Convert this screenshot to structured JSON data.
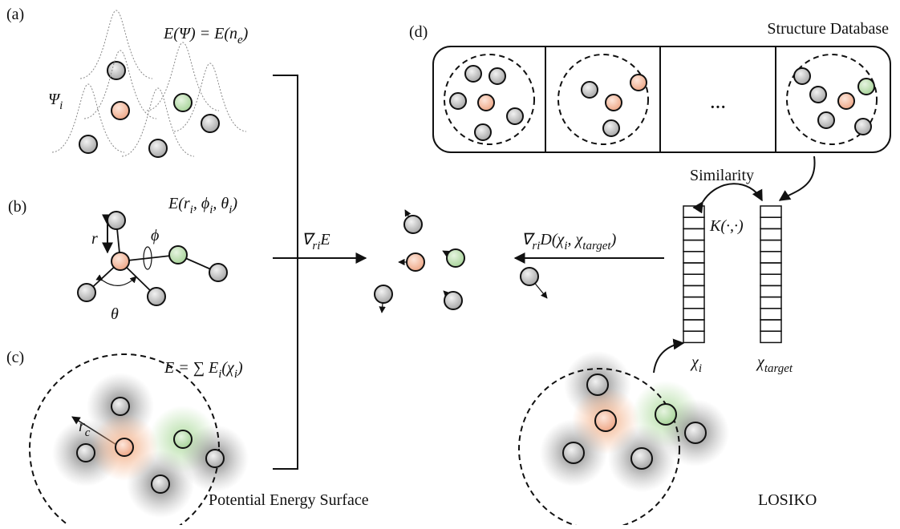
{
  "panel_a": {
    "label": "(a)",
    "formula": [
      {
        "text": "E(Ψ) = E(n"
      },
      {
        "text": "e",
        "sub": true
      },
      {
        "text": ")"
      }
    ],
    "psi": [
      {
        "text": "Ψ"
      },
      {
        "text": "i",
        "sub": true
      }
    ]
  },
  "panel_b": {
    "label": "(b)",
    "formula": [
      {
        "text": "E(r"
      },
      {
        "text": "i",
        "sub": true
      },
      {
        "text": ",  ϕ"
      },
      {
        "text": "i",
        "sub": true
      },
      {
        "text": ",  θ"
      },
      {
        "text": "i",
        "sub": true
      },
      {
        "text": ")"
      }
    ],
    "r": "r",
    "phi": "ϕ",
    "theta": "θ"
  },
  "panel_c": {
    "label": "(c)",
    "formula": [
      {
        "text": "E = ∑ E"
      },
      {
        "text": "i",
        "sub": true
      },
      {
        "text": "(χ"
      },
      {
        "text": "i",
        "sub": true
      },
      {
        "text": ")"
      }
    ],
    "rc": [
      {
        "text": "r"
      },
      {
        "text": "c",
        "sub": true
      }
    ],
    "caption": "Potential Energy Surface"
  },
  "gradient_energy": [
    {
      "text": "∇"
    },
    {
      "text": "r",
      "sub": true
    },
    {
      "text": "i",
      "sub": true
    },
    {
      "text": "E"
    }
  ],
  "gradient_distance": [
    {
      "text": "∇"
    },
    {
      "text": "r",
      "sub": true
    },
    {
      "text": "i",
      "sub": true
    },
    {
      "text": "D(χ"
    },
    {
      "text": "i",
      "sub": true
    },
    {
      "text": ", χ"
    },
    {
      "text": "target",
      "sub": true
    },
    {
      "text": ")"
    }
  ],
  "panel_d": {
    "label": "(d)",
    "database_title": "Structure Database",
    "ellipsis": "···",
    "similarity": "Similarity",
    "kernel": "K(·,·)",
    "chi_i": [
      {
        "text": "χ"
      },
      {
        "text": "i",
        "sub": true
      }
    ],
    "chi_target": [
      {
        "text": "χ"
      },
      {
        "text": "target",
        "sub": true
      }
    ],
    "caption": "LOSIKO"
  }
}
